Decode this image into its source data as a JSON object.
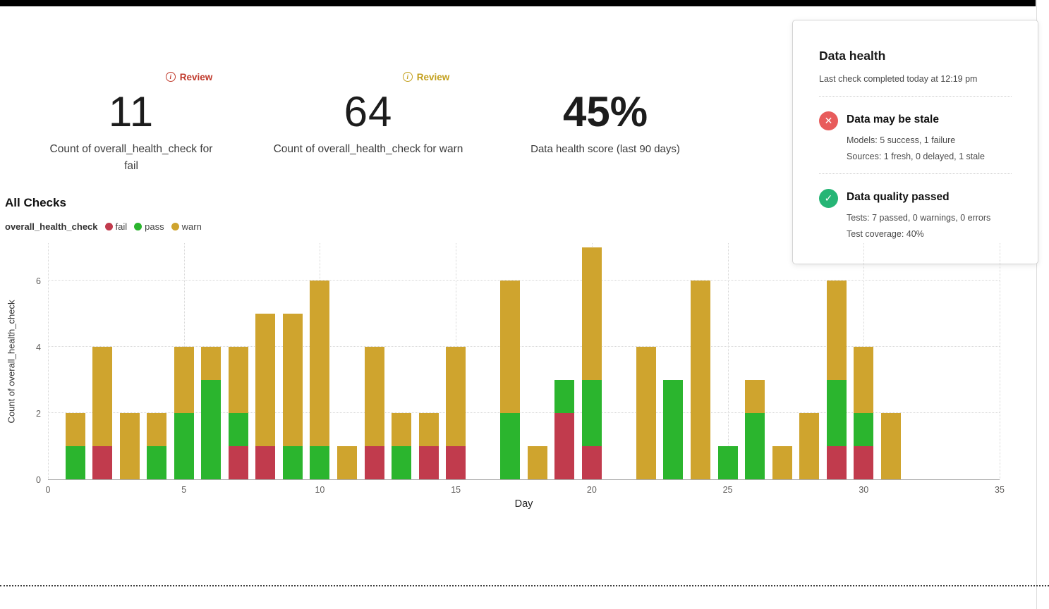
{
  "kpis": [
    {
      "review": "Review",
      "review_color": "#c0392b",
      "value": "11",
      "label": "Count of overall_health_check for fail"
    },
    {
      "review": "Review",
      "review_color": "#c3a01d",
      "value": "64",
      "label": "Count of overall_health_check for warn"
    },
    {
      "value": "45%",
      "label": "Data health score (last 90 days)"
    }
  ],
  "health_panel": {
    "title": "Data health",
    "last_check": "Last check completed today at 12:19 pm",
    "sections": [
      {
        "icon": "x-circle",
        "glyph": "✕",
        "color": "#e85c5c",
        "title": "Data may be stale",
        "line1": "Models: 5 success, 1 failure",
        "line2": "Sources: 1 fresh, 0 delayed, 1 stale"
      },
      {
        "icon": "check-circle",
        "glyph": "✓",
        "color": "#25b575",
        "title": "Data quality passed",
        "line1": "Tests: 7 passed, 0 warnings, 0 errors",
        "line2": "Test coverage: 40%"
      }
    ]
  },
  "chart_data": {
    "type": "bar",
    "stacked": true,
    "title": "All Checks",
    "legend_title": "overall_health_check",
    "legend": [
      {
        "name": "fail",
        "color": "#c13b4d"
      },
      {
        "name": "pass",
        "color": "#2bb52e"
      },
      {
        "name": "warn",
        "color": "#cfa42e"
      }
    ],
    "xlabel": "Day",
    "ylabel": "Count of overall_health_check",
    "xlim": [
      0,
      35
    ],
    "ylim": [
      0,
      7.12
    ],
    "x_ticks": [
      0,
      5,
      10,
      15,
      20,
      25,
      30,
      35
    ],
    "y_ticks": [
      0,
      2,
      4,
      6
    ],
    "grid": "dotted",
    "stack_order": [
      "fail",
      "pass",
      "warn"
    ],
    "bars": [
      {
        "day": 1,
        "fail": 0,
        "pass": 1,
        "warn": 1
      },
      {
        "day": 2,
        "fail": 1,
        "pass": 0,
        "warn": 3
      },
      {
        "day": 3,
        "fail": 0,
        "pass": 0,
        "warn": 2
      },
      {
        "day": 4,
        "fail": 0,
        "pass": 1,
        "warn": 1
      },
      {
        "day": 5,
        "fail": 0,
        "pass": 2,
        "warn": 2
      },
      {
        "day": 6,
        "fail": 0,
        "pass": 3,
        "warn": 1
      },
      {
        "day": 7,
        "fail": 1,
        "pass": 1,
        "warn": 2
      },
      {
        "day": 8,
        "fail": 1,
        "pass": 0,
        "warn": 4
      },
      {
        "day": 9,
        "fail": 0,
        "pass": 1,
        "warn": 4
      },
      {
        "day": 10,
        "fail": 0,
        "pass": 1,
        "warwarn": 0,
        "warn": 5
      },
      {
        "day": 11,
        "fail": 0,
        "pass": 0,
        "warn": 1
      },
      {
        "day": 12,
        "fail": 1,
        "pass": 0,
        "warn": 3
      },
      {
        "day": 13,
        "fail": 0,
        "pass": 1,
        "warn": 1
      },
      {
        "day": 14,
        "fail": 1,
        "pass": 0,
        "warn": 1
      },
      {
        "day": 15,
        "fail": 1,
        "pass": 0,
        "warn": 3
      },
      {
        "day": 17,
        "fail": 0,
        "pass": 2,
        "warn": 4
      },
      {
        "day": 18,
        "fail": 0,
        "pass": 0,
        "warn": 1
      },
      {
        "day": 19,
        "fail": 2,
        "pass": 1,
        "warn": 0
      },
      {
        "day": 20,
        "fail": 1,
        "pass": 2,
        "warn": 4
      },
      {
        "day": 22,
        "fail": 0,
        "pass": 0,
        "warn": 4
      },
      {
        "day": 23,
        "fail": 0,
        "pass": 3,
        "warn": 0
      },
      {
        "day": 24,
        "fail": 0,
        "pass": 0,
        "warn": 6
      },
      {
        "day": 25,
        "fail": 0,
        "pass": 1,
        "warn": 0
      },
      {
        "day": 26,
        "fail": 0,
        "pass": 2,
        "warn": 1
      },
      {
        "day": 27,
        "fail": 0,
        "pass": 0,
        "warn": 1
      },
      {
        "day": 28,
        "fail": 0,
        "pass": 0,
        "warn": 2
      },
      {
        "day": 29,
        "fail": 1,
        "pass": 2,
        "warn": 3
      },
      {
        "day": 30,
        "fail": 1,
        "pass": 1,
        "warn": 2
      },
      {
        "day": 31,
        "fail": 0,
        "pass": 0,
        "warn": 2
      }
    ]
  }
}
